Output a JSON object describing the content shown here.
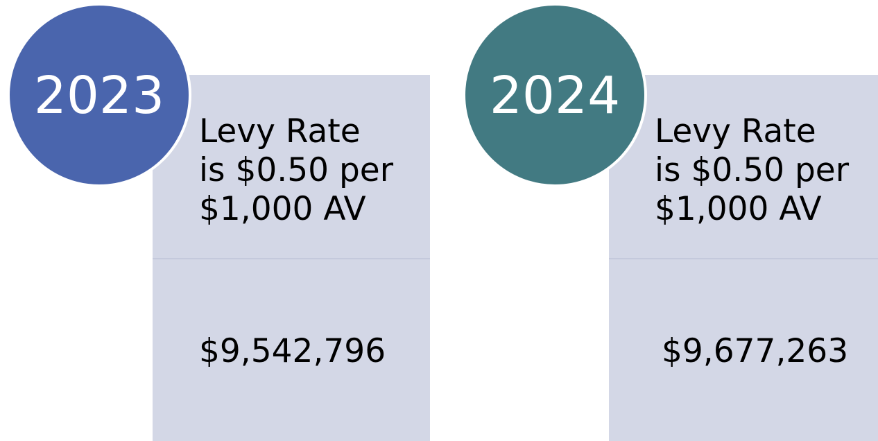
{
  "panels": [
    {
      "year": "2023",
      "rate_lines": [
        "Levy Rate",
        "is $0.50 per",
        "$1,000 AV"
      ],
      "amount": "$9,542,796"
    },
    {
      "year": "2024",
      "rate_lines": [
        "Levy Rate",
        "is $0.50 per",
        "$1,000 AV"
      ],
      "amount": "$9,677,263"
    }
  ]
}
